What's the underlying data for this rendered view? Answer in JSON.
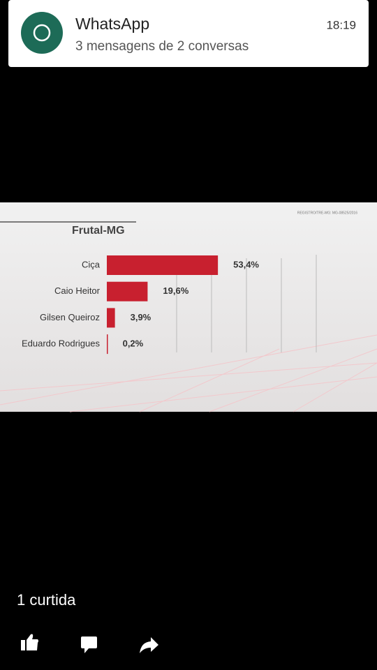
{
  "notification": {
    "app": "WhatsApp",
    "time": "18:19",
    "text": "3 mensagens de 2 conversas"
  },
  "chart_data": {
    "type": "hbar",
    "title": "Frutal-MG",
    "note": "REGISTRO/TRE-MG: MG-08525/2016",
    "categories": [
      "Ciça",
      "Caio Heitor",
      "Gilsen Queiroz",
      "Eduardo Rodrigues"
    ],
    "values": [
      53.4,
      19.6,
      3.9,
      0.2
    ],
    "value_labels": [
      "53,4%",
      "19,6%",
      "3,9%",
      "0,2%"
    ],
    "color": "#c8202f",
    "xlim": [
      0,
      100
    ]
  },
  "footer": {
    "likes": "1 curtida"
  }
}
